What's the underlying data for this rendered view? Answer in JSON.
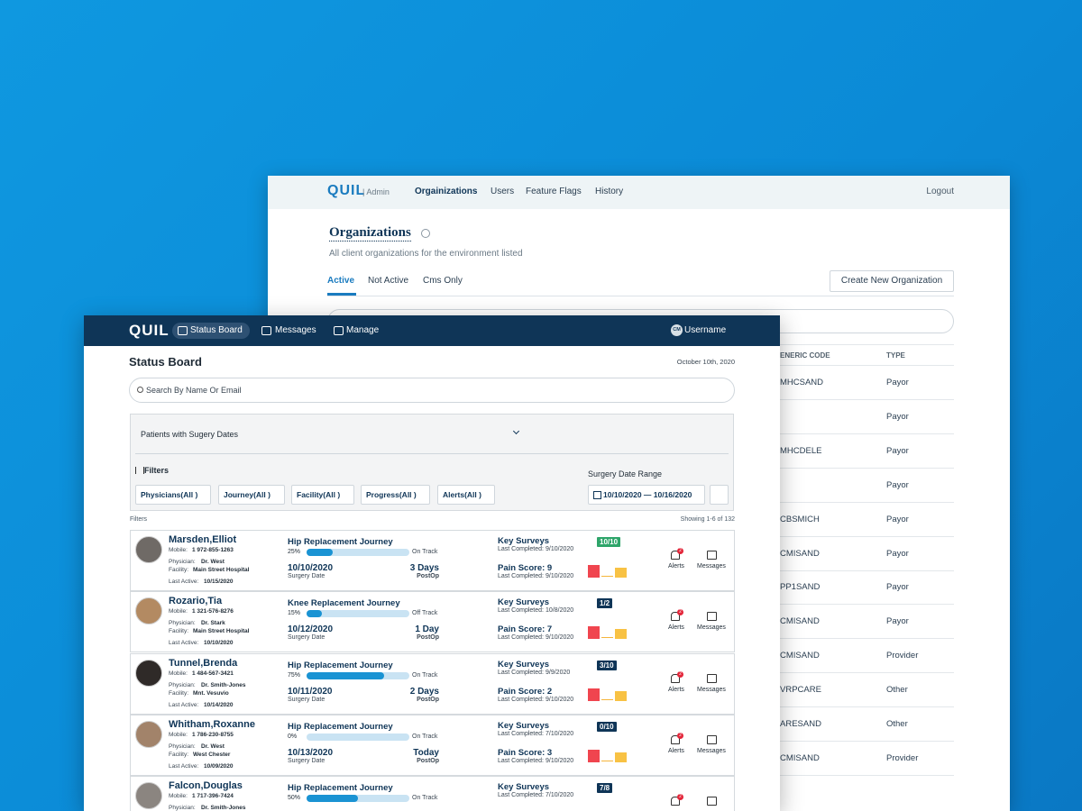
{
  "admin": {
    "logo": "QUIL",
    "logo_suffix": "| Admin",
    "nav": [
      "Orgainizations",
      "Users",
      "Feature Flags",
      "History"
    ],
    "logout": "Logout",
    "title": "Organizations",
    "subtitle": "All client organizations for the environment listed",
    "tabs": [
      "Active",
      "Not Active",
      "Cms Only"
    ],
    "create_button": "Create New Organization",
    "table": {
      "headers": [
        "ENERIC CODE",
        "TYPE"
      ],
      "rows": [
        {
          "code": "MHCSAND",
          "type": "Payor"
        },
        {
          "type": "Payor"
        },
        {
          "code": "MHCDELE",
          "type": "Payor"
        },
        {
          "type": "Payor"
        },
        {
          "code": "CBSMICH",
          "type": "Payor"
        },
        {
          "code": "CMISAND",
          "type": "Payor"
        },
        {
          "code": "PP1SAND",
          "type": "Payor"
        },
        {
          "code": "CMISAND",
          "type": "Payor"
        },
        {
          "code": "CMISAND",
          "type": "Provider"
        },
        {
          "code": "VRPCARE",
          "type": "Other"
        },
        {
          "code": "ARESAND",
          "type": "Other"
        },
        {
          "code": "CMISAND",
          "type": "Provider"
        }
      ]
    }
  },
  "app": {
    "logo": "QUIL",
    "nav": [
      "Status Board",
      "Messages",
      "Manage"
    ],
    "user_initials": "CM",
    "username": "Username",
    "title": "Status Board",
    "date": "October 10th, 2020",
    "search_placeholder": "Search By Name Or Email",
    "view": "Patients with Sugery Dates",
    "filters_title": "Filters",
    "filters": [
      "Physicians(All )",
      "Journey(All )",
      "Facility(All )",
      "Progress(All )",
      "Alerts(All )"
    ],
    "date_range_title": "Surgery Date Range",
    "date_range": "10/10/2020 — 10/16/2020",
    "filters_small": "Filters",
    "showing": "Showing 1-6 of 132",
    "labels": {
      "mobile": "Mobile:",
      "physician": "Physician:",
      "facility": "Facility:",
      "last_active": "Last Active:",
      "surgery_date": "Surgery Date",
      "postop": "PostOp",
      "key_surveys": "Key Surveys",
      "last_completed": "Last Completed:",
      "alerts": "Alerts",
      "messages": "Messages"
    },
    "patients": [
      {
        "name": "Marsden,Elliot",
        "mobile": "1 972-855-1263",
        "physician": "Dr. West",
        "facility": "Main Street Hospital",
        "last_active": "10/15/2020",
        "journey": "Hip Replacement Journey",
        "progress": 25,
        "progress_label": "25%",
        "status": "On Track",
        "surgery_date": "10/10/2020",
        "days": "3 Days",
        "surveys_completed": "9/10/2020",
        "survey_badge": "10/10",
        "pain": "Pain Score: 9",
        "pain_completed": "9/10/2020",
        "alerts": "2"
      },
      {
        "name": "Rozario,Tia",
        "mobile": "1 321-576-8276",
        "physician": "Dr. Stark",
        "facility": "Main Street Hospital",
        "last_active": "10/10/2020",
        "journey": "Knee Replacement Journey",
        "progress": 15,
        "progress_label": "15%",
        "status": "Off Track",
        "surgery_date": "10/12/2020",
        "days": "1 Day",
        "surveys_completed": "10/8/2020",
        "survey_badge": "1/2",
        "pain": "Pain Score: 7",
        "pain_completed": "9/10/2020",
        "alerts": "2"
      },
      {
        "name": "Tunnel,Brenda",
        "mobile": "1 484-567-3421",
        "physician": "Dr. Smith-Jones",
        "facility": "Mnt. Vesuvio",
        "last_active": "10/14/2020",
        "journey": "Hip Replacement Journey",
        "progress": 75,
        "progress_label": "75%",
        "status": "On Track",
        "surgery_date": "10/11/2020",
        "days": "2 Days",
        "surveys_completed": "9/9/2020",
        "survey_badge": "3/10",
        "pain": "Pain Score: 2",
        "pain_completed": "9/10/2020",
        "alerts": "2"
      },
      {
        "name": "Whitham,Roxanne",
        "mobile": "1 786-230-8755",
        "physician": "Dr. West",
        "facility": "West Chester",
        "last_active": "10/09/2020",
        "journey": "Hip Replacement Journey",
        "progress": 0,
        "progress_label": "0%",
        "status": "On Track",
        "surgery_date": "10/13/2020",
        "days": "Today",
        "surveys_completed": "7/10/2020",
        "survey_badge": "0/10",
        "pain": "Pain Score: 3",
        "pain_completed": "9/10/2020",
        "alerts": "2"
      },
      {
        "name": "Falcon,Douglas",
        "mobile": "1 717-396-7424",
        "physician": "Dr. Smith-Jones",
        "journey": "Hip Replacement Journey",
        "progress": 50,
        "progress_label": "50%",
        "status": "On Track",
        "surveys_completed": "7/10/2020",
        "survey_badge": "7/8",
        "alerts": "2"
      }
    ]
  }
}
